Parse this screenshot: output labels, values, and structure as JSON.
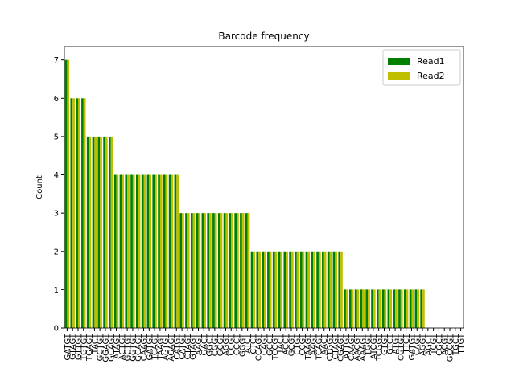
{
  "chart_data": {
    "type": "bar",
    "title": "Barcode frequency",
    "ylabel": "Count",
    "categories": [
      "GATGT",
      "GTAGT",
      "GTTGT",
      "TGTGT",
      "TGAGT",
      "TACT",
      "GCTGT",
      "GGAGT",
      "GCAGT",
      "ATAGT",
      "ACTGT",
      "GCTGT",
      "GGTGT",
      "GCAGT",
      "CAAGT",
      "GATGT",
      "TCAGT",
      "TAAGT",
      "AGTGT",
      "AGAGT",
      "CATGT",
      "CATGT",
      "CTAGT",
      "GTAGT",
      "AAGT",
      "GACT",
      "GGCT",
      "CGGT",
      "GCGT",
      "AGGT",
      "CCGT",
      "CCCT",
      "GGGT",
      "ATCT",
      "CTCT",
      "CCAGT",
      "CAGT",
      "GCCT",
      "TCCGT",
      "TACT",
      "ACCT",
      "GCGT",
      "CTGT",
      "CCGT",
      "TAAGT",
      "AAGT",
      "TCAGT",
      "AACT",
      "CTGGT",
      "CTAGT",
      "CGAGT",
      "ATTGT",
      "CAAGT",
      "AACGT",
      "AAAGT",
      "TGGT",
      "ATCGT",
      "TCGGT",
      "GTGT",
      "GTCT",
      "ATGT",
      "CGTGT",
      "TTCT",
      "GATGT",
      "CAGT",
      "AGGT",
      "AGCT",
      "TCGT",
      "CGCT",
      "ACGT",
      "GCCGT",
      "TGCT",
      "TTGT"
    ],
    "series": [
      {
        "name": "Read1",
        "color": "#008000",
        "values": [
          7,
          6,
          6,
          6,
          5,
          5,
          5,
          5,
          5,
          4,
          4,
          4,
          4,
          4,
          4,
          4,
          4,
          4,
          4,
          4,
          4,
          3,
          3,
          3,
          3,
          3,
          3,
          3,
          3,
          3,
          3,
          3,
          3,
          3,
          2,
          2,
          2,
          2,
          2,
          2,
          2,
          2,
          2,
          2,
          2,
          2,
          2,
          2,
          2,
          2,
          2,
          1,
          1,
          1,
          1,
          1,
          1,
          1,
          1,
          1,
          1,
          1,
          1,
          1,
          1,
          1,
          0,
          0,
          0,
          0,
          0,
          0,
          0
        ]
      },
      {
        "name": "Read2",
        "color": "#bfbf00",
        "values": [
          7,
          6,
          6,
          6,
          5,
          5,
          5,
          5,
          5,
          4,
          4,
          4,
          4,
          4,
          4,
          4,
          4,
          4,
          4,
          4,
          4,
          3,
          3,
          3,
          3,
          3,
          3,
          3,
          3,
          3,
          3,
          3,
          3,
          3,
          2,
          2,
          2,
          2,
          2,
          2,
          2,
          2,
          2,
          2,
          2,
          2,
          2,
          2,
          2,
          2,
          2,
          1,
          1,
          1,
          1,
          1,
          1,
          1,
          1,
          1,
          1,
          1,
          1,
          1,
          1,
          1,
          0,
          0,
          0,
          0,
          0,
          0,
          0
        ]
      }
    ],
    "ylim": [
      0,
      7.35
    ],
    "yticks": [
      0,
      1,
      2,
      3,
      4,
      5,
      6,
      7
    ],
    "legend": "upper right"
  }
}
